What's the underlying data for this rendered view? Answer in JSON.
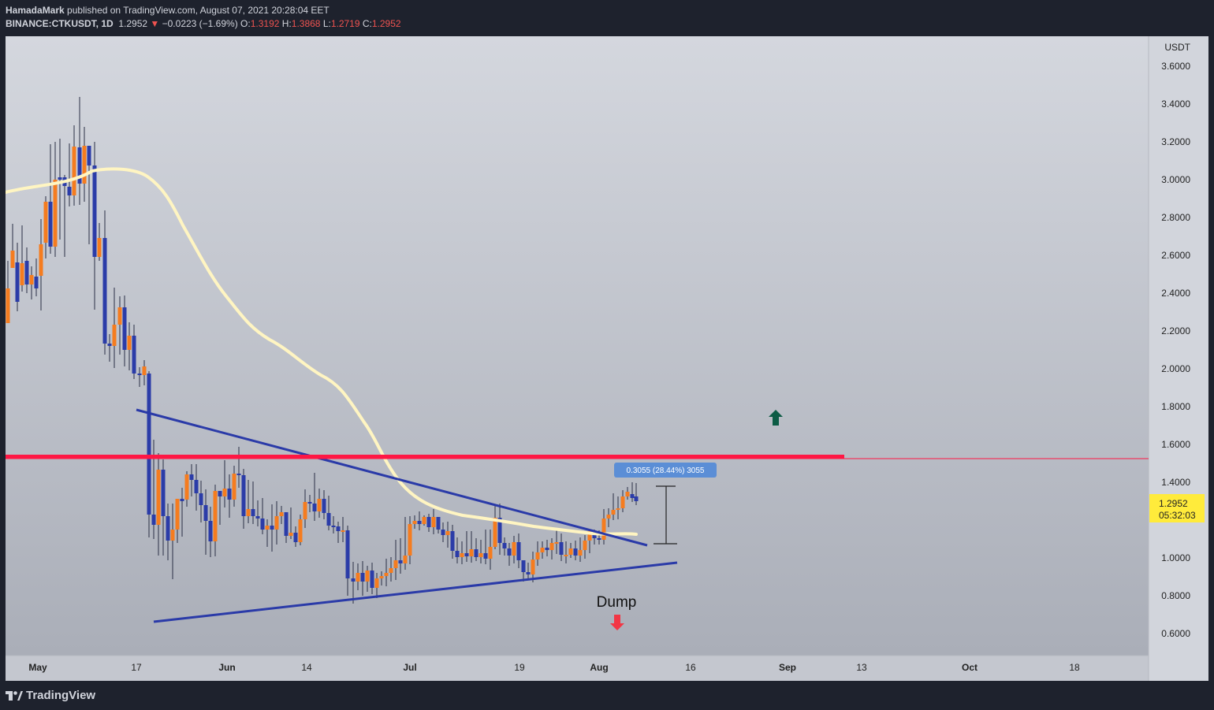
{
  "header": {
    "author": "HamadaMark",
    "published_text": "published on TradingView.com, August 07, 2021 20:28:04 EET",
    "symbol": "BINANCE:CTKUSDT, 1D",
    "last": "1.2952",
    "change": "−0.0223 (−1.69%)",
    "o_label": "O:",
    "o_value": "1.3192",
    "h_label": "H:",
    "h_value": "1.3868",
    "l_label": "L:",
    "l_value": "1.2719",
    "c_label": "C:",
    "c_value": "1.2952"
  },
  "footer": {
    "brand": "TradingView"
  },
  "colors": {
    "up": "#f57c1f",
    "down": "#2b3ca8",
    "ma": "#fff5c2",
    "trendline": "#2a3aa8",
    "resistance": "#ff1744",
    "price_label_bg": "#ffeb3b",
    "measure_bg": "#5b8ed6",
    "arrow_up": "#0c5c45",
    "arrow_down": "#f23645"
  },
  "chart_data": {
    "type": "candlestick",
    "currency_label": "USDT",
    "y_ticks": [
      "3.6000",
      "3.4000",
      "3.2000",
      "3.0000",
      "2.8000",
      "2.6000",
      "2.4000",
      "2.2000",
      "2.0000",
      "1.8000",
      "1.6000",
      "1.4000",
      "1.0000",
      "0.8000",
      "0.6000"
    ],
    "x_ticks": [
      "May",
      "17",
      "Jun",
      "14",
      "Jul",
      "19",
      "Aug",
      "16",
      "Sep",
      "13",
      "Oct",
      "18"
    ],
    "ylim": [
      0.5,
      3.75
    ],
    "last_price": "1.2952",
    "countdown": "05:32:03",
    "measure_label": "0.3055 (28.44%) 3055",
    "annotation_dump": "Dump",
    "resistance_level": 1.53,
    "sample_ohlc": [
      {
        "date": "2021-05-01",
        "o": 2.25,
        "h": 2.45,
        "l": 2.22,
        "c": 2.42
      },
      {
        "date": "2021-05-10",
        "o": 3.1,
        "h": 3.42,
        "l": 2.9,
        "c": 3.05
      },
      {
        "date": "2021-05-19",
        "o": 1.95,
        "h": 2.0,
        "l": 1.05,
        "c": 1.3
      },
      {
        "date": "2021-06-20",
        "o": 1.1,
        "h": 1.15,
        "l": 0.85,
        "c": 0.9
      },
      {
        "date": "2021-07-01",
        "o": 1.0,
        "h": 1.28,
        "l": 0.95,
        "c": 1.22
      },
      {
        "date": "2021-07-15",
        "o": 1.28,
        "h": 1.32,
        "l": 1.05,
        "c": 1.08
      },
      {
        "date": "2021-08-01",
        "o": 1.1,
        "h": 1.25,
        "l": 1.06,
        "c": 1.22
      },
      {
        "date": "2021-08-07",
        "o": 1.3192,
        "h": 1.3868,
        "l": 1.2719,
        "c": 1.2952
      }
    ]
  }
}
